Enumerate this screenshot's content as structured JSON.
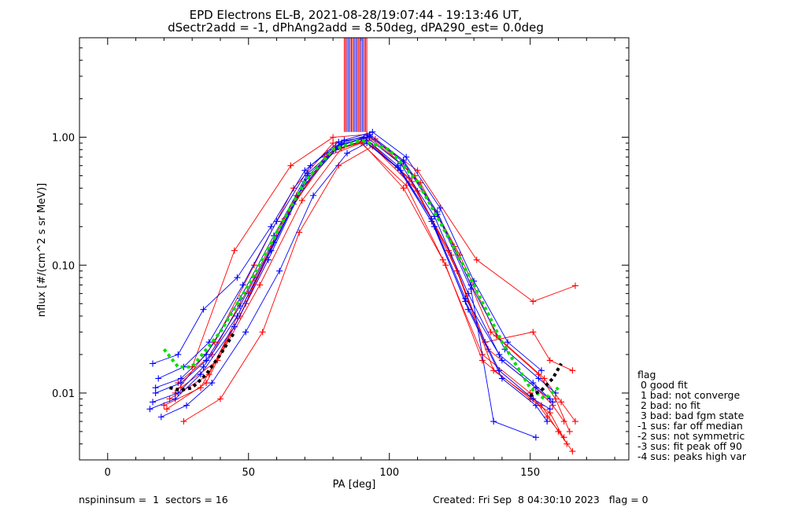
{
  "figure": {
    "title_line1": "EPD Electrons EL-B, 2021-08-28/19:07:44 - 19:13:46 UT,",
    "title_line2": "dSectr2add = -1, dPhAng2add = 8.50deg, dPA290_est=   0.0deg",
    "footer_left": "nspininsum =  1  sectors = 16",
    "footer_right": "Created: Fri Sep  8 04:30:10 2023   flag = 0"
  },
  "legend": {
    "title": "flag",
    "entries": [
      " 0 good fit",
      " 1 bad: not converge",
      " 2 bad: no fit",
      " 3 bad: bad fgm state",
      "-1 sus: far off median",
      "-2 sus: not symmetric",
      "-3 sus: fit peak off 90",
      "-4 sus: peaks high var"
    ]
  },
  "colors": {
    "axes": "#000000",
    "red_traces": "#ff0000",
    "blue_traces": "#0000ff",
    "fit_green": "#00e000",
    "fit_black": "#000000"
  },
  "chart_data": {
    "type": "line",
    "xlabel": "PA [deg]",
    "ylabel": "nflux [#/(cm^2 s sr MeV)]",
    "xlim": [
      -10,
      185
    ],
    "ylim": [
      0.003,
      6.0
    ],
    "y_scale": "log",
    "grid": false,
    "x_ticks": [
      0,
      50,
      100,
      150
    ],
    "x_tick_labels": [
      "0",
      "50",
      "100",
      "150"
    ],
    "y_ticks": [
      0.01,
      0.1,
      1.0
    ],
    "y_tick_labels": [
      "0.01",
      "0.10",
      "1.00"
    ],
    "series": [
      {
        "color": "red",
        "curves": [
          {
            "x": [
              22,
              36,
              50,
              66,
              80,
              92,
              108,
              122,
              135,
              152,
              158,
              162
            ],
            "y": [
              0.009,
              0.014,
              0.06,
              0.3,
              0.8,
              0.95,
              0.45,
              0.12,
              0.022,
              0.011,
              0.008,
              0.006
            ]
          },
          {
            "x": [
              25,
              37,
              52,
              67,
              81,
              93,
              109,
              123,
              136,
              153,
              159,
              164
            ],
            "y": [
              0.012,
              0.02,
              0.08,
              0.35,
              0.85,
              1.0,
              0.5,
              0.14,
              0.03,
              0.014,
              0.009,
              0.005
            ]
          },
          {
            "x": [
              20,
              33,
              47,
              62,
              77,
              90,
              106,
              120,
              133,
              150,
              157,
              163
            ],
            "y": [
              0.008,
              0.011,
              0.04,
              0.22,
              0.7,
              0.9,
              0.42,
              0.1,
              0.018,
              0.009,
              0.007,
              0.004
            ]
          },
          {
            "x": [
              27,
              40,
              55,
              68,
              82,
              94,
              110,
              124,
              137,
              154,
              160,
              165
            ],
            "y": [
              0.006,
              0.009,
              0.03,
              0.18,
              0.6,
              0.85,
              0.38,
              0.09,
              0.015,
              0.008,
              0.005,
              0.0035
            ]
          },
          {
            "x": [
              30,
              45,
              65,
              80,
              92,
              110,
              131,
              151,
              166
            ],
            "y": [
              0.016,
              0.13,
              0.6,
              1.0,
              1.05,
              0.55,
              0.11,
              0.052,
              0.069
            ]
          },
          {
            "x": [
              24,
              38,
              52,
              66,
              80,
              91,
              107,
              121,
              134,
              151,
              157,
              165
            ],
            "y": [
              0.01,
              0.025,
              0.1,
              0.4,
              0.9,
              1.0,
              0.48,
              0.13,
              0.025,
              0.03,
              0.018,
              0.015
            ]
          },
          {
            "x": [
              21,
              35,
              49,
              64,
              78,
              90,
              105,
              119,
              133,
              150,
              156,
              162
            ],
            "y": [
              0.0075,
              0.012,
              0.05,
              0.25,
              0.75,
              0.92,
              0.4,
              0.11,
              0.02,
              0.01,
              0.0065,
              0.0045
            ]
          },
          {
            "x": [
              26,
              39,
              54,
              69,
              83,
              95,
              111,
              125,
              138,
              155,
              161,
              166
            ],
            "y": [
              0.011,
              0.018,
              0.07,
              0.32,
              0.82,
              0.97,
              0.44,
              0.12,
              0.028,
              0.013,
              0.0085,
              0.006
            ]
          }
        ]
      },
      {
        "color": "blue",
        "curves": [
          {
            "x": [
              16,
              25,
              34,
              46,
              58,
              70,
              82,
              92,
              104,
              116,
              128,
              140,
              152,
              158
            ],
            "y": [
              0.0085,
              0.01,
              0.016,
              0.04,
              0.13,
              0.45,
              0.85,
              1.0,
              0.62,
              0.24,
              0.06,
              0.018,
              0.011,
              0.0085
            ]
          },
          {
            "x": [
              17,
              26,
              35,
              47,
              59,
              71,
              83,
              93,
              105,
              117,
              129,
              141,
              153,
              159
            ],
            "y": [
              0.011,
              0.013,
              0.02,
              0.055,
              0.17,
              0.52,
              0.9,
              1.05,
              0.66,
              0.26,
              0.07,
              0.022,
              0.013,
              0.01
            ]
          },
          {
            "x": [
              15,
              24,
              33,
              45,
              57,
              69,
              81,
              91,
              103,
              115,
              127,
              139,
              151,
              157
            ],
            "y": [
              0.0075,
              0.009,
              0.014,
              0.033,
              0.11,
              0.4,
              0.8,
              0.95,
              0.58,
              0.22,
              0.052,
              0.015,
              0.009,
              0.0075
            ]
          },
          {
            "x": [
              18,
              27,
              36,
              48,
              60,
              72,
              84,
              94,
              106,
              118,
              130,
              142,
              154
            ],
            "y": [
              0.013,
              0.016,
              0.025,
              0.07,
              0.22,
              0.6,
              0.95,
              1.1,
              0.7,
              0.28,
              0.075,
              0.025,
              0.015
            ]
          },
          {
            "x": [
              19,
              28,
              37,
              49,
              61,
              73,
              85,
              92,
              104,
              116,
              128,
              140,
              152,
              156
            ],
            "y": [
              0.0065,
              0.008,
              0.012,
              0.03,
              0.09,
              0.35,
              0.75,
              0.9,
              0.55,
              0.2,
              0.045,
              0.013,
              0.008,
              0.006
            ]
          },
          {
            "x": [
              17,
              26,
              35,
              47,
              59,
              71,
              83,
              93,
              105,
              117,
              129,
              137,
              152
            ],
            "y": [
              0.01,
              0.012,
              0.018,
              0.048,
              0.15,
              0.5,
              0.88,
              1.02,
              0.64,
              0.25,
              0.065,
              0.006,
              0.0045
            ]
          },
          {
            "x": [
              16,
              25,
              34,
              46,
              58,
              70,
              82,
              91,
              103,
              115,
              127,
              139,
              151,
              157
            ],
            "y": [
              0.017,
              0.02,
              0.045,
              0.08,
              0.2,
              0.55,
              0.92,
              1.0,
              0.6,
              0.23,
              0.055,
              0.02,
              0.012,
              0.009
            ]
          }
        ]
      },
      {
        "name": "",
        "color": "green",
        "style": "dashed-fit",
        "x": [
          20,
          25,
          30,
          40,
          50,
          60,
          70,
          80,
          90,
          100,
          110,
          120,
          130,
          140,
          150,
          155,
          160
        ],
        "y": [
          0.022,
          0.016,
          0.016,
          0.03,
          0.07,
          0.18,
          0.45,
          0.8,
          0.95,
          0.8,
          0.45,
          0.18,
          0.07,
          0.025,
          0.011,
          0.009,
          0.011
        ]
      },
      {
        "name": "",
        "color": "black",
        "style": "dashed-fit",
        "x": [
          22,
          26,
          30,
          35,
          40,
          45
        ],
        "y": [
          0.011,
          0.0105,
          0.011,
          0.014,
          0.02,
          0.03
        ]
      },
      {
        "name": "",
        "color": "black",
        "style": "dashed-fit",
        "x": [
          150,
          154,
          158,
          161
        ],
        "y": [
          0.0095,
          0.0105,
          0.013,
          0.017
        ]
      }
    ],
    "vertical_band": {
      "x_range": [
        84,
        92
      ],
      "y_from": 1.1,
      "y_to": 6.0,
      "colors": [
        "red",
        "blue"
      ]
    }
  }
}
